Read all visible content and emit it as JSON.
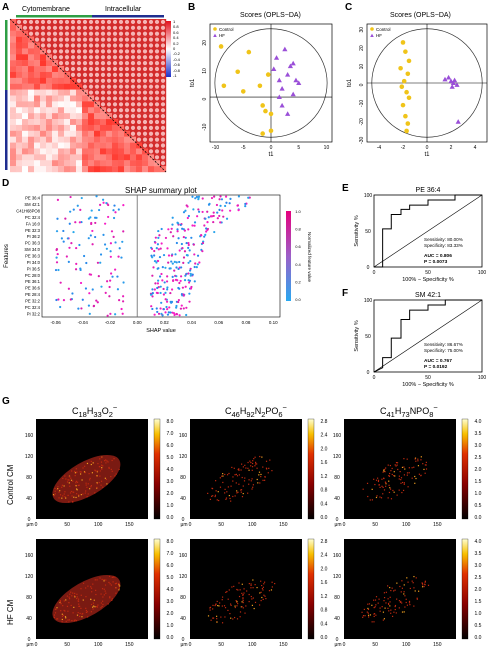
{
  "panels": {
    "a": {
      "label": "A",
      "cytomembrane": "Cytomembrane",
      "intracellular": "Intracellular",
      "colorbar_ticks": [
        "1",
        "0.8",
        "0.6",
        "0.4",
        "0.2",
        "0",
        "-0.2",
        "-0.4",
        "-0.6",
        "-0.8",
        "-1"
      ]
    },
    "b": {
      "label": "B",
      "title": "Scores (OPLS−DA)",
      "xlabel": "t1",
      "ylabel": "to1",
      "legend": [
        "Control",
        "HF"
      ],
      "xticks": [
        "-10",
        "-5",
        "0",
        "5",
        "10"
      ],
      "yticks": [
        "-10",
        "0",
        "10",
        "20",
        "30"
      ]
    },
    "c": {
      "label": "C",
      "title": "Scores (OPLS−DA)",
      "xlabel": "t1",
      "ylabel": "to1",
      "legend": [
        "Control",
        "HF"
      ],
      "xticks": [
        "-4",
        "-2",
        "0",
        "2",
        "4"
      ],
      "yticks": [
        "-30",
        "-20",
        "-10",
        "0",
        "10",
        "20",
        "30"
      ]
    },
    "d": {
      "label": "D",
      "title": "SHAP summary plot",
      "xlabel": "SHAP value",
      "ylabel": "Features",
      "colorbar_label": "Normalized feature value",
      "cb_ticks": [
        "1.0",
        "0.8",
        "0.6",
        "0.4",
        "0.2",
        "0.0"
      ],
      "features": [
        "PE 36:4",
        "SM 42:1",
        "C41H68PO8",
        "PC 32:4",
        "FA 16:0",
        "PE 32:3",
        "PI 36:2",
        "PC 36:3",
        "SM 34:0",
        "PE 36:3",
        "PI 34:0",
        "PI 36:5",
        "PC 28:0",
        "PE 36:1",
        "PE 36:6",
        "PE 28:4",
        "PE 32:2",
        "PC 32:4",
        "PI 32:2"
      ],
      "xticks": [
        "-0.06",
        "-0.04",
        "-0.02",
        "0.00",
        "0.02",
        "0.04",
        "0.06",
        "0.08",
        "0.10"
      ]
    },
    "e": {
      "label": "E",
      "title": "PE 36:4",
      "xlabel": "100% − Specificity %",
      "ylabel": "Sensitivity %",
      "sens": "Sensitivity: 80.00%",
      "spec": "Specificity: 83.33%",
      "auc": "AUC = 0.806",
      "p": "P = 0.0073",
      "ticks": [
        "0",
        "50",
        "100"
      ]
    },
    "f": {
      "label": "F",
      "title": "SM 42:1",
      "xlabel": "100% − Specificity %",
      "ylabel": "Sensitivity %",
      "sens": "Sensitivity: 86.67%",
      "spec": "Specificity: 75.00%",
      "auc": "AUC = 0.767",
      "p": "P = 0.0192",
      "ticks": [
        "0",
        "50",
        "100"
      ]
    },
    "g": {
      "label": "G",
      "columns": [
        "C18H33O2−",
        "C46H92N2PO6−",
        "C41H73NPO8−"
      ],
      "rows": [
        "Control CM",
        "HF CM"
      ],
      "axis_unit": "μm",
      "xticks": [
        "0",
        "50",
        "100",
        "150"
      ],
      "yticks": [
        "0",
        "40",
        "80",
        "120",
        "160"
      ],
      "cb1": [
        "8.0",
        "7.0",
        "6.0",
        "5.0",
        "4.0",
        "3.0",
        "2.0",
        "1.0",
        "0.0"
      ],
      "cb2": [
        "2.8",
        "2.4",
        "2.0",
        "1.6",
        "1.2",
        "0.8",
        "0.4",
        "0.0"
      ],
      "cb3": [
        "4.0",
        "3.5",
        "3.0",
        "2.5",
        "2.0",
        "1.5",
        "1.0",
        "0.5",
        "0.0"
      ]
    }
  },
  "chart_data": [
    {
      "type": "scatter",
      "title": "Scores (OPLS−DA)",
      "xlabel": "t1",
      "ylabel": "to1",
      "series": [
        {
          "name": "Control",
          "x": [
            -9,
            -8.5,
            -6,
            -5,
            -4,
            -2,
            -1.5,
            -1,
            -0.5,
            0,
            0,
            -1.5
          ],
          "y": [
            18,
            4,
            9,
            2,
            16,
            4,
            -3,
            -5,
            8,
            -6,
            -12,
            -13
          ]
        },
        {
          "name": "HF",
          "x": [
            0.5,
            1,
            1.5,
            2,
            2.5,
            3,
            3.5,
            4,
            4.5,
            5,
            2,
            3,
            1.5,
            4
          ],
          "y": [
            10,
            14,
            6,
            3,
            17,
            8,
            11,
            1,
            6,
            5,
            -3,
            -6,
            0,
            12
          ]
        }
      ]
    },
    {
      "type": "scatter",
      "title": "Scores (OPLS−DA)",
      "xlabel": "t1",
      "ylabel": "to1",
      "series": [
        {
          "name": "Control",
          "x": [
            -2,
            -1.8,
            -1.5,
            -2.2,
            -1.6,
            -1.9,
            -2.1,
            -1.7,
            -1.5,
            -2,
            -1.8,
            -1.6,
            -1.7
          ],
          "y": [
            22,
            17,
            12,
            8,
            5,
            1,
            -2,
            -5,
            -8,
            -12,
            -18,
            -22,
            -26
          ]
        },
        {
          "name": "HF",
          "x": [
            1.5,
            2,
            2.2,
            2.5,
            1.8,
            2.3,
            2.1,
            2.6
          ],
          "y": [
            2,
            1,
            0,
            -1,
            3,
            1.5,
            -2,
            -21
          ]
        }
      ]
    }
  ]
}
